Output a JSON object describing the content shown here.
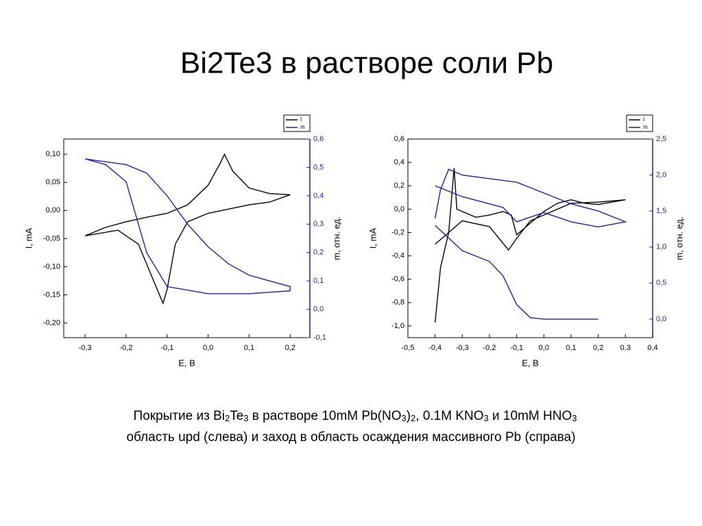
{
  "title": "Bi2Te3 в растворе соли Pb",
  "caption": {
    "line1": [
      "Покрытие из Bi",
      "2",
      "Te",
      "3",
      " в растворе 10mM Pb(NO",
      "3",
      ")",
      "2",
      ", 0.1M KNO",
      "3",
      " и 10mM HNO",
      "3"
    ],
    "line2": "область upd (слева) и заход в область осаждения массивного Pb (справа)"
  },
  "chart_data": [
    {
      "type": "line",
      "x_label": "E, B",
      "y_label": "I, mA",
      "y2_label": "m, отн. ед.",
      "xlim": [
        -0.352,
        0.248
      ],
      "xticks": [
        {
          "value": -0.3,
          "label": "-0,3"
        },
        {
          "value": -0.2,
          "label": "-0,2"
        },
        {
          "value": -0.1,
          "label": "-0,1"
        },
        {
          "value": 0,
          "label": "0,0"
        },
        {
          "value": 0.1,
          "label": "0,1"
        },
        {
          "value": 0.2,
          "label": "0,2"
        }
      ],
      "ylim": [
        -0.226,
        0.127
      ],
      "yticks": [
        {
          "value": 0.1,
          "label": "0,10"
        },
        {
          "value": 0.05,
          "label": "0,05"
        },
        {
          "value": 0,
          "label": "0,00"
        },
        {
          "value": -0.05,
          "label": "-0,05"
        },
        {
          "value": -0.1,
          "label": "-0,10"
        },
        {
          "value": -0.15,
          "label": "-0,15"
        },
        {
          "value": -0.2,
          "label": "-0,20"
        }
      ],
      "y2lim": [
        -0.1,
        0.6
      ],
      "y2ticks": [
        {
          "value": 0.6,
          "label": "0,6"
        },
        {
          "value": 0.5,
          "label": "0,5"
        },
        {
          "value": 0.4,
          "label": "0,4"
        },
        {
          "value": 0.3,
          "label": "0,3"
        },
        {
          "value": 0.2,
          "label": "0,2"
        },
        {
          "value": 0.1,
          "label": "0,1"
        },
        {
          "value": 0,
          "label": "0,0"
        },
        {
          "value": -0.1,
          "label": "-0,1"
        }
      ],
      "series": [
        {
          "name": "I",
          "color": "#000000",
          "x": [
            -0.3,
            -0.25,
            -0.2,
            -0.15,
            -0.1,
            -0.05,
            0,
            0.03,
            0.04,
            0.06,
            0.1,
            0.15,
            0.2,
            0.15,
            0.1,
            0,
            -0.05,
            -0.08,
            -0.1,
            -0.11,
            -0.13,
            -0.17,
            -0.22,
            -0.3
          ],
          "values": [
            -0.045,
            -0.03,
            -0.02,
            -0.012,
            -0.005,
            0.01,
            0.045,
            0.085,
            0.1,
            0.07,
            0.04,
            0.03,
            0.028,
            0.015,
            0.01,
            -0.005,
            -0.02,
            -0.06,
            -0.14,
            -0.165,
            -0.13,
            -0.06,
            -0.035,
            -0.045
          ]
        },
        {
          "name": "m",
          "color": "#1f1fb4",
          "axis": "y2",
          "x": [
            -0.3,
            -0.2,
            -0.15,
            -0.1,
            -0.05,
            0,
            0.05,
            0.1,
            0.2,
            0.2,
            0.1,
            0,
            -0.1,
            -0.15,
            -0.18,
            -0.2,
            -0.25,
            -0.3
          ],
          "values": [
            0.53,
            0.51,
            0.48,
            0.4,
            0.3,
            0.22,
            0.16,
            0.12,
            0.08,
            0.065,
            0.055,
            0.055,
            0.08,
            0.2,
            0.35,
            0.45,
            0.51,
            0.53
          ]
        }
      ]
    },
    {
      "type": "line",
      "x_label": "E, B",
      "y_label": "I, mA",
      "y2_label": "m, отн. ед.",
      "xlim": [
        -0.5,
        0.4
      ],
      "xticks": [
        {
          "value": -0.5,
          "label": "-0,5"
        },
        {
          "value": -0.4,
          "label": "-0,4"
        },
        {
          "value": -0.3,
          "label": "-0,3"
        },
        {
          "value": -0.2,
          "label": "-0,2"
        },
        {
          "value": -0.1,
          "label": "-0,1"
        },
        {
          "value": 0,
          "label": "0,0"
        },
        {
          "value": 0.1,
          "label": "0,1"
        },
        {
          "value": 0.2,
          "label": "0,2"
        },
        {
          "value": 0.3,
          "label": "0,3"
        },
        {
          "value": 0.4,
          "label": "0,4"
        }
      ],
      "ylim": [
        -1.1,
        0.6
      ],
      "yticks": [
        {
          "value": 0.6,
          "label": "0,6"
        },
        {
          "value": 0.4,
          "label": "0,4"
        },
        {
          "value": 0.2,
          "label": "0,2"
        },
        {
          "value": 0,
          "label": "0,0"
        },
        {
          "value": -0.2,
          "label": "-0,2"
        },
        {
          "value": -0.4,
          "label": "-0,4"
        },
        {
          "value": -0.6,
          "label": "-0,6"
        },
        {
          "value": -0.8,
          "label": "-0,8"
        },
        {
          "value": -1.0,
          "label": "-1,0"
        }
      ],
      "y2lim": [
        -0.258,
        2.5
      ],
      "y2ticks": [
        {
          "value": 2.5,
          "label": "2,5"
        },
        {
          "value": 2.0,
          "label": "2,0"
        },
        {
          "value": 1.5,
          "label": "1,5"
        },
        {
          "value": 1.0,
          "label": "1,0"
        },
        {
          "value": 0.5,
          "label": "0,5"
        },
        {
          "value": 0,
          "label": "0,0"
        }
      ],
      "series": [
        {
          "name": "I",
          "color": "#000000",
          "x": [
            -0.4,
            -0.38,
            -0.35,
            -0.33,
            -0.32,
            -0.25,
            -0.2,
            -0.15,
            -0.12,
            -0.1,
            0,
            0.05,
            0.1,
            0.15,
            0.2,
            0.3,
            0.2,
            0.1,
            0,
            -0.05,
            -0.1,
            -0.13,
            -0.2,
            -0.3,
            -0.4
          ],
          "values": [
            -0.97,
            -0.5,
            -0.2,
            0.35,
            0,
            -0.07,
            -0.05,
            -0.02,
            -0.05,
            -0.22,
            -0.02,
            0.05,
            0.08,
            0.05,
            0.04,
            0.08,
            0.06,
            0.05,
            -0.05,
            -0.1,
            -0.25,
            -0.35,
            -0.15,
            -0.1,
            -0.3
          ]
        },
        {
          "name": "m",
          "color": "#1f1fb4",
          "axis": "y2",
          "x": [
            -0.4,
            -0.38,
            -0.35,
            -0.3,
            -0.2,
            -0.1,
            0,
            0.1,
            0.2,
            0.3,
            0.2,
            0.1,
            0,
            -0.1,
            -0.15,
            -0.3,
            -0.4,
            null,
            -0.4,
            -0.3,
            -0.2,
            -0.15,
            -0.1,
            -0.05,
            0,
            0.2
          ],
          "values": [
            1.4,
            1.8,
            2.08,
            2.0,
            1.95,
            1.9,
            1.75,
            1.6,
            1.5,
            1.35,
            1.28,
            1.35,
            1.48,
            1.35,
            1.55,
            1.7,
            1.85,
            null,
            1.3,
            0.95,
            0.8,
            0.6,
            0.2,
            0.02,
            0,
            0
          ]
        }
      ]
    }
  ]
}
